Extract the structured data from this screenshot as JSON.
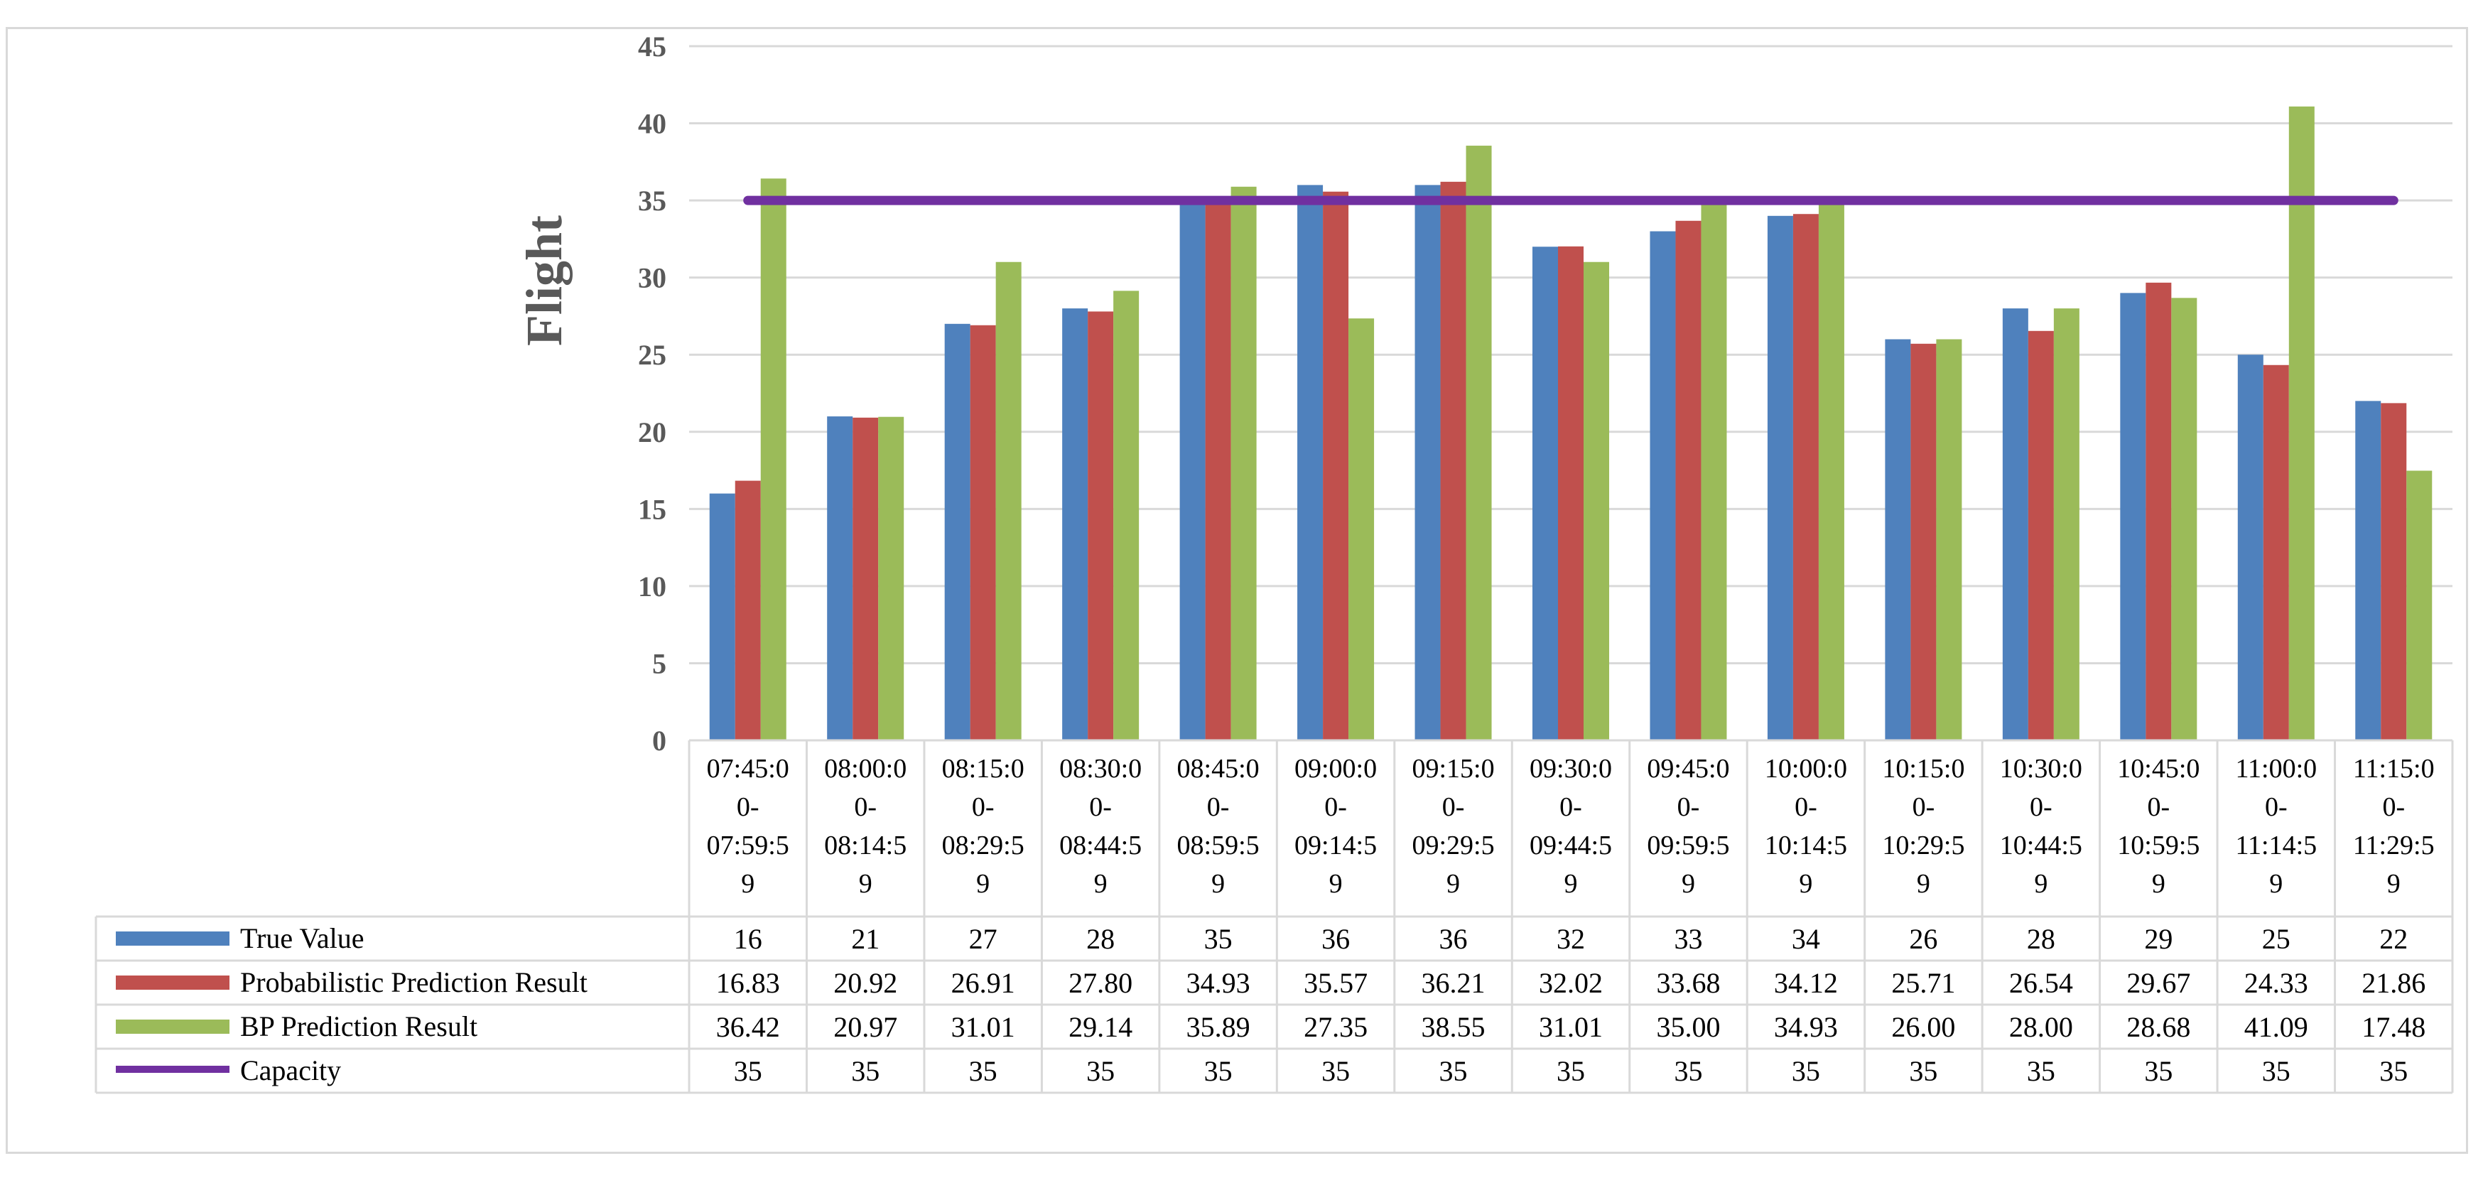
{
  "chart_data": {
    "type": "bar",
    "title": "",
    "xlabel": "",
    "ylabel": "Flight",
    "ylim": [
      0,
      45
    ],
    "yticks": [
      0,
      5,
      10,
      15,
      20,
      25,
      30,
      35,
      40,
      45
    ],
    "grid": true,
    "legend": "data-table-left",
    "categories": [
      [
        "07:45:0",
        "0-",
        "07:59:5",
        "9"
      ],
      [
        "08:00:0",
        "0-",
        "08:14:5",
        "9"
      ],
      [
        "08:15:0",
        "0-",
        "08:29:5",
        "9"
      ],
      [
        "08:30:0",
        "0-",
        "08:44:5",
        "9"
      ],
      [
        "08:45:0",
        "0-",
        "08:59:5",
        "9"
      ],
      [
        "09:00:0",
        "0-",
        "09:14:5",
        "9"
      ],
      [
        "09:15:0",
        "0-",
        "09:29:5",
        "9"
      ],
      [
        "09:30:0",
        "0-",
        "09:44:5",
        "9"
      ],
      [
        "09:45:0",
        "0-",
        "09:59:5",
        "9"
      ],
      [
        "10:00:0",
        "0-",
        "10:14:5",
        "9"
      ],
      [
        "10:15:0",
        "0-",
        "10:29:5",
        "9"
      ],
      [
        "10:30:0",
        "0-",
        "10:44:5",
        "9"
      ],
      [
        "10:45:0",
        "0-",
        "10:59:5",
        "9"
      ],
      [
        "11:00:0",
        "0-",
        "11:14:5",
        "9"
      ],
      [
        "11:15:0",
        "0-",
        "11:29:5",
        "9"
      ]
    ],
    "series": [
      {
        "name": "True Value",
        "type": "bar",
        "color": "#4f81bd",
        "values": [
          16,
          21,
          27,
          28,
          35,
          36,
          36,
          32,
          33,
          34,
          26,
          28,
          29,
          25,
          22
        ],
        "labels": [
          "16",
          "21",
          "27",
          "28",
          "35",
          "36",
          "36",
          "32",
          "33",
          "34",
          "26",
          "28",
          "29",
          "25",
          "22"
        ]
      },
      {
        "name": "Probabilistic Prediction Result",
        "type": "bar",
        "color": "#c0504d",
        "values": [
          16.83,
          20.92,
          26.91,
          27.8,
          34.93,
          35.57,
          36.21,
          32.02,
          33.68,
          34.12,
          25.71,
          26.54,
          29.67,
          24.33,
          21.86
        ],
        "labels": [
          "16.83",
          "20.92",
          "26.91",
          "27.80",
          "34.93",
          "35.57",
          "36.21",
          "32.02",
          "33.68",
          "34.12",
          "25.71",
          "26.54",
          "29.67",
          "24.33",
          "21.86"
        ]
      },
      {
        "name": "BP Prediction Result",
        "type": "bar",
        "color": "#9bbb59",
        "values": [
          36.42,
          20.97,
          31.01,
          29.14,
          35.89,
          27.35,
          38.55,
          31.01,
          35.0,
          34.93,
          26.0,
          28.0,
          28.68,
          41.09,
          17.48
        ],
        "labels": [
          "36.42",
          "20.97",
          "31.01",
          "29.14",
          "35.89",
          "27.35",
          "38.55",
          "31.01",
          "35.00",
          "34.93",
          "26.00",
          "28.00",
          "28.68",
          "41.09",
          "17.48"
        ]
      },
      {
        "name": "Capacity",
        "type": "line",
        "color": "#7030a0",
        "values": [
          35,
          35,
          35,
          35,
          35,
          35,
          35,
          35,
          35,
          35,
          35,
          35,
          35,
          35,
          35
        ],
        "labels": [
          "35",
          "35",
          "35",
          "35",
          "35",
          "35",
          "35",
          "35",
          "35",
          "35",
          "35",
          "35",
          "35",
          "35",
          "35"
        ]
      }
    ]
  }
}
